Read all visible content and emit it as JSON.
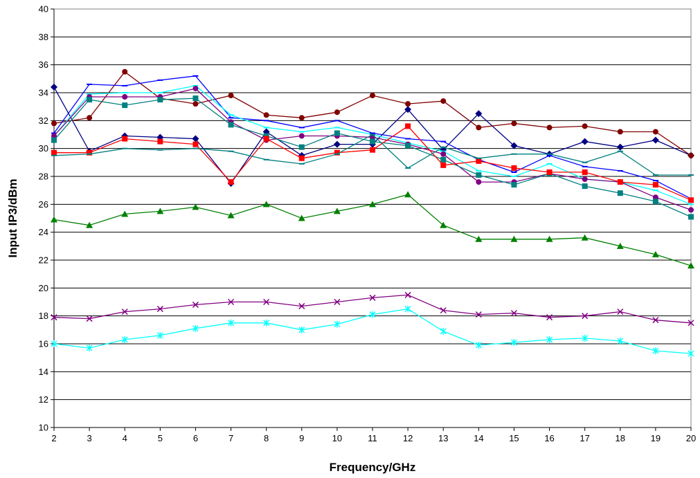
{
  "chart_data": {
    "type": "line",
    "title": "",
    "xlabel": "Frequency/GHz",
    "ylabel": "Input IP3/dBm",
    "xlim": [
      2,
      20
    ],
    "ylim": [
      10,
      40
    ],
    "x_ticks": [
      2,
      3,
      4,
      5,
      6,
      7,
      8,
      9,
      10,
      11,
      12,
      13,
      14,
      15,
      16,
      17,
      18,
      19,
      20
    ],
    "y_ticks": [
      10,
      12,
      14,
      16,
      18,
      20,
      22,
      24,
      26,
      28,
      30,
      32,
      34,
      36,
      38,
      40
    ],
    "grid": "horizontal",
    "legend": "none",
    "x": [
      2,
      3,
      4,
      5,
      6,
      7,
      8,
      9,
      10,
      11,
      12,
      13,
      14,
      15,
      16,
      17,
      18,
      19,
      20
    ],
    "series": [
      {
        "color": "#000080",
        "marker": "diamond",
        "values": [
          34.4,
          29.8,
          30.9,
          30.8,
          30.7,
          27.5,
          31.2,
          29.5,
          30.3,
          30.3,
          32.8,
          29.9,
          32.5,
          30.2,
          29.6,
          30.5,
          30.1,
          30.6,
          29.5
        ]
      },
      {
        "color": "#800000",
        "marker": "circle",
        "values": [
          31.8,
          32.2,
          35.5,
          33.6,
          33.2,
          33.8,
          32.4,
          32.2,
          32.6,
          33.8,
          33.2,
          33.4,
          31.5,
          31.8,
          31.5,
          31.6,
          31.2,
          31.2,
          29.5
        ]
      },
      {
        "color": "#0000ff",
        "marker": "dash",
        "values": [
          31.1,
          34.6,
          34.5,
          34.9,
          35.2,
          32.2,
          32.0,
          31.5,
          32.0,
          31.1,
          30.7,
          30.5,
          29.2,
          28.3,
          29.5,
          28.7,
          28.4,
          27.7,
          26.4
        ]
      },
      {
        "color": "#00ffff",
        "marker": "dash",
        "values": [
          30.9,
          33.9,
          34.0,
          34.0,
          34.5,
          32.4,
          31.5,
          31.2,
          31.5,
          31.0,
          30.4,
          29.8,
          28.4,
          28.0,
          28.9,
          27.8,
          27.6,
          27.0,
          26.0
        ]
      },
      {
        "color": "#800080",
        "marker": "circle",
        "values": [
          30.9,
          33.7,
          33.7,
          33.7,
          34.3,
          31.9,
          30.6,
          30.9,
          30.9,
          30.8,
          30.3,
          29.6,
          27.6,
          27.6,
          28.2,
          27.8,
          27.6,
          26.5,
          25.6
        ]
      },
      {
        "color": "#008080",
        "marker": "square",
        "values": [
          30.6,
          33.5,
          33.1,
          33.5,
          33.6,
          31.7,
          30.9,
          30.1,
          31.1,
          30.5,
          30.2,
          29.2,
          28.1,
          27.4,
          28.2,
          27.3,
          26.8,
          26.2,
          25.1
        ]
      },
      {
        "color": "#ff0000",
        "marker": "square",
        "values": [
          29.7,
          29.7,
          30.7,
          30.5,
          30.3,
          27.6,
          30.7,
          29.3,
          29.7,
          29.9,
          31.6,
          28.8,
          29.1,
          28.6,
          28.3,
          28.3,
          27.6,
          27.4,
          26.3
        ]
      },
      {
        "color": "#008080",
        "marker": "dash",
        "values": [
          29.5,
          29.6,
          30.0,
          29.9,
          30.0,
          29.8,
          29.2,
          28.9,
          29.6,
          31.0,
          28.6,
          30.1,
          29.3,
          29.6,
          29.6,
          29.0,
          29.8,
          28.1,
          28.1
        ]
      },
      {
        "color": "#008000",
        "marker": "triangle",
        "values": [
          24.9,
          24.5,
          25.3,
          25.5,
          25.8,
          25.2,
          26.0,
          25.0,
          25.5,
          26.0,
          26.7,
          24.5,
          23.5,
          23.5,
          23.5,
          23.6,
          23.0,
          22.4,
          21.6
        ]
      },
      {
        "color": "#800080",
        "marker": "x",
        "values": [
          17.9,
          17.8,
          18.3,
          18.5,
          18.8,
          19.0,
          19.0,
          18.7,
          19.0,
          19.3,
          19.5,
          18.4,
          18.1,
          18.2,
          17.9,
          18.0,
          18.3,
          17.7,
          17.5
        ]
      },
      {
        "color": "#00ffff",
        "marker": "star",
        "values": [
          16.0,
          15.7,
          16.3,
          16.6,
          17.1,
          17.5,
          17.5,
          17.0,
          17.4,
          18.1,
          18.5,
          16.9,
          15.9,
          16.1,
          16.3,
          16.4,
          16.2,
          15.5,
          15.3
        ]
      }
    ]
  }
}
